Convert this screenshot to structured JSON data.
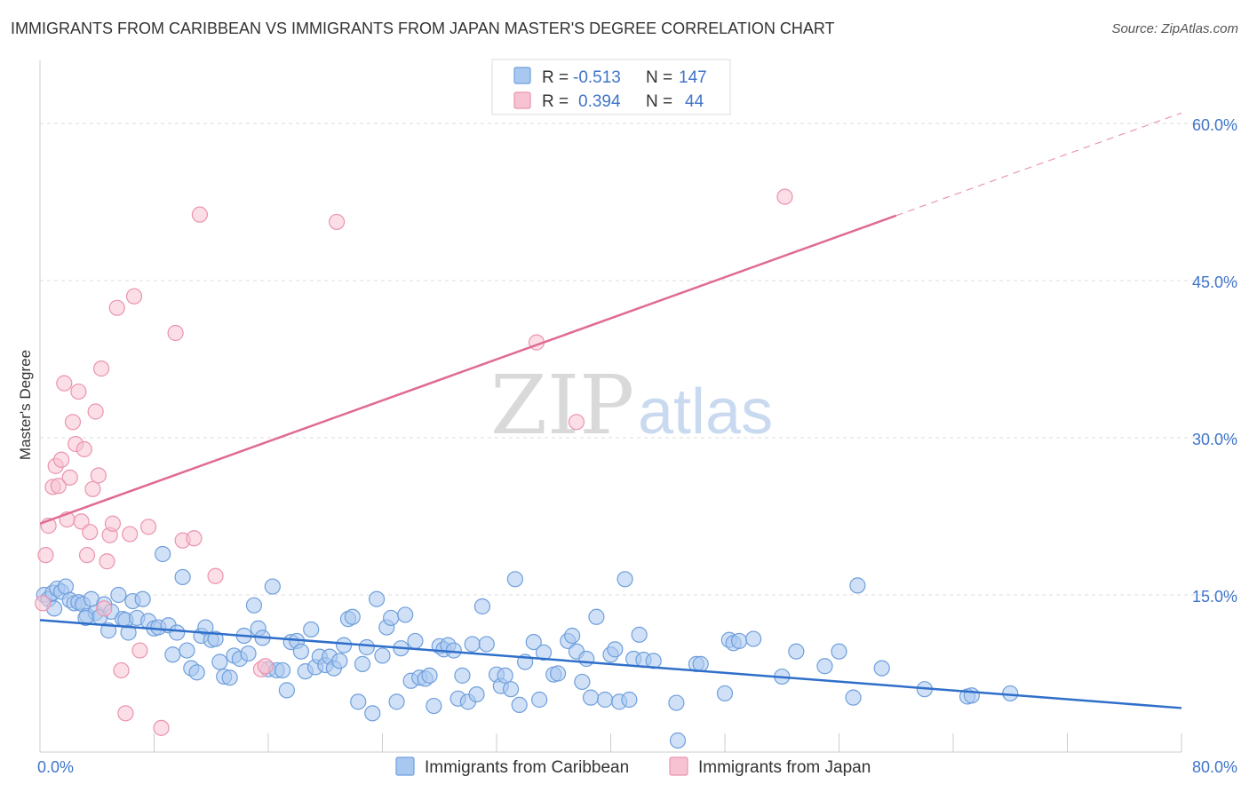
{
  "header": {
    "title": "IMMIGRANTS FROM CARIBBEAN VS IMMIGRANTS FROM JAPAN MASTER'S DEGREE CORRELATION CHART",
    "source": "Source: ZipAtlas.com"
  },
  "watermark": {
    "zip": "ZIP",
    "atlas": "atlas"
  },
  "colors": {
    "caribbean_fill": "#a9c8f0",
    "caribbean_stroke": "#6f9fdc",
    "caribbean_line": "#2f6fca",
    "japan_fill": "#f7c3d2",
    "japan_stroke": "#ea94af",
    "japan_line": "#e06a93",
    "tick": "#3f74c9",
    "grid": "#dddddd"
  },
  "legend": {
    "rows": [
      {
        "r_label": "R =",
        "r_value": "-0.513",
        "n_label": "N =",
        "n_value": "147"
      },
      {
        "r_label": "R =",
        "r_value": "0.394",
        "n_label": "N =",
        "n_value": "44"
      }
    ]
  },
  "chart_data": {
    "type": "scatter",
    "xlabel": "",
    "ylabel": "Master's Degree",
    "xlim": [
      0,
      80
    ],
    "ylim": [
      0,
      65
    ],
    "x_tick_labels": [
      {
        "value": 0,
        "label": "0.0%"
      },
      {
        "value": 80,
        "label": "80.0%"
      }
    ],
    "y_ticks": [
      {
        "value": 15,
        "label": "15.0%"
      },
      {
        "value": 30,
        "label": "30.0%"
      },
      {
        "value": 45,
        "label": "45.0%"
      },
      {
        "value": 60,
        "label": "60.0%"
      }
    ],
    "x_minor_ticks": [
      0,
      8,
      16,
      24,
      32,
      40,
      48,
      56,
      64,
      72,
      80
    ],
    "grid": "horizontal dashed",
    "legend_position": "top-center",
    "series": [
      {
        "name": "Immigrants from Caribbean",
        "R": -0.513,
        "N": 147,
        "trend": {
          "x": [
            0,
            80
          ],
          "y": [
            12.6,
            4.2
          ]
        },
        "points": [
          [
            0.3,
            15.0
          ],
          [
            0.6,
            14.6
          ],
          [
            0.9,
            15.2
          ],
          [
            1.2,
            15.6
          ],
          [
            1.5,
            15.3
          ],
          [
            1.8,
            15.8
          ],
          [
            2.1,
            14.5
          ],
          [
            2.4,
            14.2
          ],
          [
            2.7,
            14.3
          ],
          [
            3.0,
            14.1
          ],
          [
            3.3,
            13.0
          ],
          [
            3.6,
            14.6
          ],
          [
            3.9,
            13.3
          ],
          [
            4.2,
            12.9
          ],
          [
            4.5,
            14.1
          ],
          [
            4.8,
            11.6
          ],
          [
            5.0,
            13.4
          ],
          [
            5.5,
            15.0
          ],
          [
            5.8,
            12.7
          ],
          [
            6.0,
            12.6
          ],
          [
            6.5,
            14.4
          ],
          [
            6.8,
            12.8
          ],
          [
            7.2,
            14.6
          ],
          [
            7.6,
            12.5
          ],
          [
            8.0,
            11.8
          ],
          [
            8.3,
            11.9
          ],
          [
            8.6,
            18.9
          ],
          [
            9.0,
            12.1
          ],
          [
            9.3,
            9.3
          ],
          [
            9.6,
            11.4
          ],
          [
            10.0,
            16.7
          ],
          [
            10.3,
            9.7
          ],
          [
            10.6,
            8.0
          ],
          [
            11.0,
            7.6
          ],
          [
            11.3,
            11.1
          ],
          [
            11.6,
            11.9
          ],
          [
            12.0,
            10.7
          ],
          [
            12.3,
            10.8
          ],
          [
            12.6,
            8.6
          ],
          [
            12.9,
            7.2
          ],
          [
            13.3,
            7.1
          ],
          [
            13.6,
            9.2
          ],
          [
            14.0,
            8.9
          ],
          [
            14.3,
            11.1
          ],
          [
            14.6,
            9.4
          ],
          [
            15.0,
            14.0
          ],
          [
            15.3,
            11.8
          ],
          [
            15.6,
            10.9
          ],
          [
            16.0,
            7.9
          ],
          [
            16.3,
            15.8
          ],
          [
            16.6,
            7.8
          ],
          [
            17.0,
            7.8
          ],
          [
            17.3,
            5.9
          ],
          [
            17.6,
            10.5
          ],
          [
            18.0,
            10.6
          ],
          [
            18.3,
            9.6
          ],
          [
            18.6,
            7.7
          ],
          [
            19.0,
            11.7
          ],
          [
            19.3,
            8.1
          ],
          [
            19.6,
            9.1
          ],
          [
            20.0,
            8.3
          ],
          [
            20.3,
            9.1
          ],
          [
            20.6,
            8.0
          ],
          [
            21.0,
            8.7
          ],
          [
            21.3,
            10.2
          ],
          [
            21.6,
            12.7
          ],
          [
            21.9,
            12.9
          ],
          [
            22.3,
            4.8
          ],
          [
            22.6,
            8.4
          ],
          [
            22.9,
            10.0
          ],
          [
            23.3,
            3.7
          ],
          [
            23.6,
            14.6
          ],
          [
            24.0,
            9.2
          ],
          [
            24.3,
            11.9
          ],
          [
            24.6,
            12.8
          ],
          [
            25.0,
            4.8
          ],
          [
            25.3,
            9.9
          ],
          [
            25.6,
            13.1
          ],
          [
            26.0,
            6.8
          ],
          [
            26.3,
            10.6
          ],
          [
            26.6,
            7.1
          ],
          [
            27.0,
            7.0
          ],
          [
            27.3,
            7.3
          ],
          [
            27.6,
            4.4
          ],
          [
            28.0,
            10.1
          ],
          [
            28.3,
            9.8
          ],
          [
            28.6,
            10.2
          ],
          [
            29.0,
            9.7
          ],
          [
            29.3,
            5.1
          ],
          [
            29.6,
            7.3
          ],
          [
            30.0,
            4.8
          ],
          [
            30.3,
            10.3
          ],
          [
            30.6,
            5.5
          ],
          [
            31.0,
            13.9
          ],
          [
            31.3,
            10.3
          ],
          [
            32.0,
            7.4
          ],
          [
            32.3,
            6.3
          ],
          [
            32.6,
            7.3
          ],
          [
            33.0,
            6.0
          ],
          [
            33.3,
            16.5
          ],
          [
            33.6,
            4.5
          ],
          [
            34.0,
            8.6
          ],
          [
            34.6,
            10.5
          ],
          [
            35.0,
            5.0
          ],
          [
            35.3,
            9.5
          ],
          [
            36.0,
            7.4
          ],
          [
            36.3,
            7.5
          ],
          [
            37.0,
            10.6
          ],
          [
            37.3,
            11.1
          ],
          [
            37.6,
            9.6
          ],
          [
            38.0,
            6.7
          ],
          [
            38.3,
            8.9
          ],
          [
            38.6,
            5.2
          ],
          [
            39.0,
            12.9
          ],
          [
            39.6,
            5.0
          ],
          [
            40.0,
            9.3
          ],
          [
            40.3,
            9.8
          ],
          [
            40.6,
            4.8
          ],
          [
            41.0,
            16.5
          ],
          [
            41.3,
            5.0
          ],
          [
            41.6,
            8.9
          ],
          [
            42.0,
            11.2
          ],
          [
            42.3,
            8.8
          ],
          [
            43.0,
            8.7
          ],
          [
            44.6,
            4.7
          ],
          [
            44.7,
            1.1
          ],
          [
            46.0,
            8.4
          ],
          [
            46.3,
            8.4
          ],
          [
            48.0,
            5.6
          ],
          [
            48.3,
            10.7
          ],
          [
            48.6,
            10.4
          ],
          [
            49.0,
            10.6
          ],
          [
            50.0,
            10.8
          ],
          [
            52.0,
            7.2
          ],
          [
            53.0,
            9.6
          ],
          [
            55.0,
            8.2
          ],
          [
            56.0,
            9.6
          ],
          [
            57.0,
            5.2
          ],
          [
            57.3,
            15.9
          ],
          [
            59.0,
            8.0
          ],
          [
            62.0,
            6.0
          ],
          [
            65.0,
            5.3
          ],
          [
            65.3,
            5.4
          ],
          [
            68.0,
            5.6
          ],
          [
            1.0,
            13.7
          ],
          [
            3.2,
            12.8
          ],
          [
            6.2,
            11.4
          ]
        ]
      },
      {
        "name": "Immigrants from Japan",
        "R": 0.394,
        "N": 44,
        "trend": {
          "x": [
            0,
            80
          ],
          "y": [
            21.8,
            61.0
          ],
          "solid_until_x": 60
        },
        "points": [
          [
            0.2,
            14.2
          ],
          [
            0.4,
            18.8
          ],
          [
            0.6,
            21.6
          ],
          [
            0.9,
            25.3
          ],
          [
            1.1,
            27.3
          ],
          [
            1.3,
            25.4
          ],
          [
            1.5,
            27.9
          ],
          [
            1.7,
            35.2
          ],
          [
            1.9,
            22.2
          ],
          [
            2.1,
            26.2
          ],
          [
            2.3,
            31.5
          ],
          [
            2.5,
            29.4
          ],
          [
            2.7,
            34.4
          ],
          [
            2.9,
            22.0
          ],
          [
            3.1,
            28.9
          ],
          [
            3.3,
            18.8
          ],
          [
            3.5,
            21.0
          ],
          [
            3.7,
            25.1
          ],
          [
            3.9,
            32.5
          ],
          [
            4.1,
            26.4
          ],
          [
            4.3,
            36.6
          ],
          [
            4.5,
            13.7
          ],
          [
            4.7,
            18.2
          ],
          [
            4.9,
            20.7
          ],
          [
            5.1,
            21.8
          ],
          [
            5.4,
            42.4
          ],
          [
            5.7,
            7.8
          ],
          [
            6.0,
            3.7
          ],
          [
            6.3,
            20.8
          ],
          [
            6.6,
            43.5
          ],
          [
            7.0,
            9.7
          ],
          [
            7.6,
            21.5
          ],
          [
            8.5,
            2.3
          ],
          [
            9.5,
            40.0
          ],
          [
            10.0,
            20.2
          ],
          [
            10.8,
            20.4
          ],
          [
            11.2,
            51.3
          ],
          [
            12.3,
            16.8
          ],
          [
            15.5,
            7.9
          ],
          [
            15.8,
            8.2
          ],
          [
            20.8,
            50.6
          ],
          [
            34.8,
            39.1
          ],
          [
            37.6,
            31.5
          ],
          [
            52.2,
            53.0
          ]
        ]
      }
    ]
  },
  "bottom_legend": {
    "items": [
      {
        "label": "Immigrants from Caribbean"
      },
      {
        "label": "Immigrants from Japan"
      }
    ]
  }
}
